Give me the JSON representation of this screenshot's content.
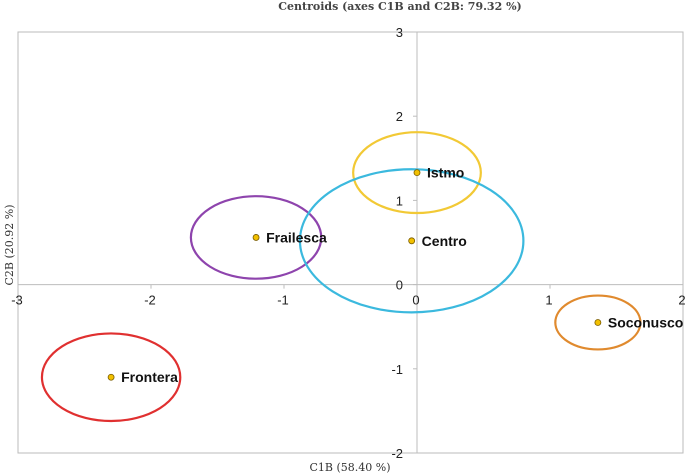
{
  "chart_data": {
    "type": "scatter",
    "title": "Centroids (axes C1B and C2B: 79.32 %)",
    "xlabel": "C1B (58.40 %)",
    "ylabel": "C2B (20.92 %)",
    "xlim": [
      -3,
      2
    ],
    "ylim": [
      -2,
      3
    ],
    "xticks": [
      "-3",
      "-2",
      "-1",
      "0",
      "1",
      "2"
    ],
    "yticks": [
      "-2",
      "-1",
      "0",
      "1",
      "2",
      "3"
    ],
    "grid": false,
    "point_color": "#f2c000",
    "points": [
      {
        "label": "Istmo",
        "x": 0.0,
        "y": 1.33,
        "rx": 0.48,
        "ry": 0.48,
        "ellipse_color": "#f2c935"
      },
      {
        "label": "Frailesca",
        "x": -1.21,
        "y": 0.56,
        "rx": 0.49,
        "ry": 0.49,
        "ellipse_color": "#8e44ad"
      },
      {
        "label": "Centro",
        "x": -0.04,
        "y": 0.52,
        "rx": 0.84,
        "ry": 0.85,
        "ellipse_color": "#3bb9de"
      },
      {
        "label": "Soconusco",
        "x": 1.36,
        "y": -0.45,
        "rx": 0.32,
        "ry": 0.32,
        "ellipse_color": "#e08a2e"
      },
      {
        "label": "Frontera",
        "x": -2.3,
        "y": -1.1,
        "rx": 0.52,
        "ry": 0.52,
        "ellipse_color": "#e03030"
      }
    ]
  }
}
